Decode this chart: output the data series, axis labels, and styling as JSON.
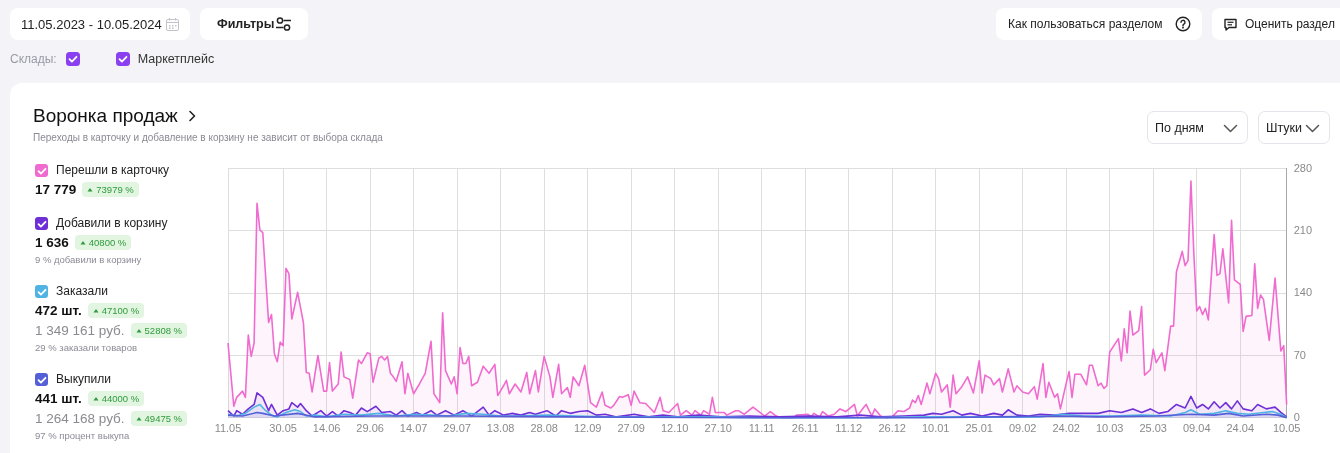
{
  "chart_data": {
    "type": "area",
    "title": "Воронка продаж",
    "subtitle": "Переходы в карточку и добавление в корзину не зависит от выбора склада",
    "annotations": [
      "11.05.2023 - 10.05.2024",
      "Фильтры",
      "Как пользоваться разделом",
      "Оценить раздел",
      "Склады:",
      "Маркетплейс",
      "По дням",
      "Штуки",
      "17 779",
      "73979 %",
      "1 636",
      "40800 %",
      "9 % добавили в корзину",
      "472 шт.",
      "47100 %",
      "1 349 161 руб.",
      "52808 %",
      "29 % заказали товаров",
      "441 шт.",
      "44000 %",
      "1 264 168 руб.",
      "49475 %",
      "97 % процент выкупа"
    ],
    "xlim": [
      "2023-05-11",
      "2024-05-10"
    ],
    "xticks": [
      {
        "value": "2023-05-11",
        "label": "11.05"
      },
      {
        "value": "2023-05-30",
        "label": "30.05"
      },
      {
        "value": "2023-06-14",
        "label": "14.06"
      },
      {
        "value": "2023-06-29",
        "label": "29.06"
      },
      {
        "value": "2023-07-14",
        "label": "14.07"
      },
      {
        "value": "2023-07-29",
        "label": "29.07"
      },
      {
        "value": "2023-08-13",
        "label": "13.08"
      },
      {
        "value": "2023-08-28",
        "label": "28.08"
      },
      {
        "value": "2023-09-12",
        "label": "12.09"
      },
      {
        "value": "2023-09-27",
        "label": "27.09"
      },
      {
        "value": "2023-10-12",
        "label": "12.10"
      },
      {
        "value": "2023-10-27",
        "label": "27.10"
      },
      {
        "value": "2023-11-11",
        "label": "11.11"
      },
      {
        "value": "2023-11-26",
        "label": "26.11"
      },
      {
        "value": "2023-12-11",
        "label": "11.12"
      },
      {
        "value": "2023-12-26",
        "label": "26.12"
      },
      {
        "value": "2024-01-10",
        "label": "10.01"
      },
      {
        "value": "2024-01-25",
        "label": "25.01"
      },
      {
        "value": "2024-02-09",
        "label": "09.02"
      },
      {
        "value": "2024-02-24",
        "label": "24.02"
      },
      {
        "value": "2024-03-10",
        "label": "10.03"
      },
      {
        "value": "2024-03-25",
        "label": "25.03"
      },
      {
        "value": "2024-04-09",
        "label": "09.04"
      },
      {
        "value": "2024-04-24",
        "label": "24.04"
      },
      {
        "value": "2024-05-10",
        "label": "10.05"
      }
    ],
    "ylim": [
      0,
      280
    ],
    "yticks": [
      0,
      70,
      140,
      210,
      280
    ],
    "grid": true,
    "legend": "left",
    "series": [
      {
        "name": "Перешли в карточку",
        "color": "#f06bcf",
        "x": [
          "2023-05-11",
          "2023-05-13",
          "2023-05-14",
          "2023-05-16",
          "2023-05-17",
          "2023-05-18",
          "2023-05-19",
          "2023-05-20",
          "2023-05-21",
          "2023-05-22",
          "2023-05-23",
          "2023-05-25",
          "2023-05-26",
          "2023-05-27",
          "2023-05-28",
          "2023-05-29",
          "2023-05-30",
          "2023-05-31",
          "2023-06-01",
          "2023-06-02",
          "2023-06-04",
          "2023-06-06",
          "2023-06-07",
          "2023-06-08",
          "2023-06-09",
          "2023-06-11",
          "2023-06-13",
          "2023-06-14",
          "2023-06-15",
          "2023-06-16",
          "2023-06-18",
          "2023-06-19",
          "2023-06-20",
          "2023-06-22",
          "2023-06-23",
          "2023-06-25",
          "2023-06-26",
          "2023-06-28",
          "2023-06-29",
          "2023-06-30",
          "2023-07-02",
          "2023-07-03",
          "2023-07-04",
          "2023-07-05",
          "2023-07-06",
          "2023-07-07",
          "2023-07-08",
          "2023-07-10",
          "2023-07-11",
          "2023-07-12",
          "2023-07-14",
          "2023-07-16",
          "2023-07-18",
          "2023-07-20",
          "2023-07-21",
          "2023-07-23",
          "2023-07-24",
          "2023-07-25",
          "2023-07-27",
          "2023-07-28",
          "2023-07-29",
          "2023-07-30",
          "2023-07-31",
          "2023-08-01",
          "2023-08-02",
          "2023-08-03",
          "2023-08-05",
          "2023-08-07",
          "2023-08-09",
          "2023-08-11",
          "2023-08-12",
          "2023-08-14",
          "2023-08-15",
          "2023-08-16",
          "2023-08-18",
          "2023-08-20",
          "2023-08-22",
          "2023-08-23",
          "2023-08-25",
          "2023-08-26",
          "2023-08-28",
          "2023-08-30",
          "2023-08-31",
          "2023-09-02",
          "2023-09-03",
          "2023-09-05",
          "2023-09-06",
          "2023-09-07",
          "2023-09-09",
          "2023-09-11",
          "2023-09-13",
          "2023-09-15",
          "2023-09-17",
          "2023-09-18",
          "2023-09-20",
          "2023-09-21",
          "2023-09-23",
          "2023-09-24",
          "2023-09-26",
          "2023-09-27",
          "2023-09-28",
          "2023-09-30",
          "2023-10-02",
          "2023-10-05",
          "2023-10-07",
          "2023-10-08",
          "2023-10-10",
          "2023-10-13",
          "2023-10-14",
          "2023-10-16",
          "2023-10-18",
          "2023-10-19",
          "2023-10-21",
          "2023-10-22",
          "2023-10-24",
          "2023-10-25",
          "2023-10-26",
          "2023-10-29",
          "2023-10-30",
          "2023-11-02",
          "2023-11-03",
          "2023-11-05",
          "2023-11-08",
          "2023-11-12",
          "2023-11-14",
          "2023-11-16",
          "2023-11-18",
          "2023-11-22",
          "2023-11-23",
          "2023-11-27",
          "2023-11-28",
          "2023-11-29",
          "2023-12-01",
          "2023-12-02",
          "2023-12-04",
          "2023-12-06",
          "2023-12-08",
          "2023-12-10",
          "2023-12-13",
          "2023-12-14",
          "2023-12-16",
          "2023-12-17",
          "2023-12-19",
          "2023-12-20",
          "2023-12-22",
          "2023-12-24",
          "2023-12-26",
          "2023-12-28",
          "2023-12-30",
          "2024-01-01",
          "2024-01-02",
          "2024-01-03",
          "2024-01-04",
          "2024-01-05",
          "2024-01-07",
          "2024-01-08",
          "2024-01-10",
          "2024-01-11",
          "2024-01-12",
          "2024-01-14",
          "2024-01-15",
          "2024-01-16",
          "2024-01-17",
          "2024-01-19",
          "2024-01-21",
          "2024-01-23",
          "2024-01-25",
          "2024-01-26",
          "2024-01-27",
          "2024-01-29",
          "2024-01-30",
          "2024-02-01",
          "2024-02-02",
          "2024-02-04",
          "2024-02-06",
          "2024-02-07",
          "2024-02-09",
          "2024-02-11",
          "2024-02-13",
          "2024-02-14",
          "2024-02-16",
          "2024-02-17",
          "2024-02-18",
          "2024-02-20",
          "2024-02-21",
          "2024-02-22",
          "2024-02-24",
          "2024-02-25",
          "2024-02-26",
          "2024-02-27",
          "2024-02-29",
          "2024-03-02",
          "2024-03-03",
          "2024-03-04",
          "2024-03-06",
          "2024-03-07",
          "2024-03-08",
          "2024-03-09",
          "2024-03-10",
          "2024-03-13",
          "2024-03-14",
          "2024-03-15",
          "2024-03-16",
          "2024-03-17",
          "2024-03-18",
          "2024-03-20",
          "2024-03-21",
          "2024-03-22",
          "2024-03-24",
          "2024-03-25",
          "2024-03-26",
          "2024-03-28",
          "2024-03-29",
          "2024-03-31",
          "2024-04-01",
          "2024-04-02",
          "2024-04-04",
          "2024-04-05",
          "2024-04-06",
          "2024-04-07",
          "2024-04-08",
          "2024-04-09",
          "2024-04-10",
          "2024-04-11",
          "2024-04-12",
          "2024-04-13",
          "2024-04-15",
          "2024-04-16",
          "2024-04-17",
          "2024-04-18",
          "2024-04-20",
          "2024-04-21",
          "2024-04-22",
          "2024-04-24",
          "2024-04-25",
          "2024-04-26",
          "2024-04-28",
          "2024-04-29",
          "2024-04-30",
          "2024-05-01",
          "2024-05-02",
          "2024-05-04",
          "2024-05-06",
          "2024-05-08",
          "2024-05-09",
          "2024-05-10"
        ],
        "values": [
          84,
          13,
          23,
          30,
          23,
          93,
          69,
          84,
          241,
          211,
          208,
          107,
          116,
          72,
          63,
          85,
          81,
          168,
          162,
          111,
          141,
          107,
          51,
          50,
          29,
          70,
          30,
          30,
          62,
          30,
          38,
          74,
          46,
          43,
          22,
          65,
          61,
          73,
          72,
          40,
          67,
          69,
          65,
          69,
          50,
          46,
          41,
          63,
          27,
          50,
          27,
          38,
          50,
          86,
          27,
          17,
          118,
          53,
          38,
          46,
          27,
          79,
          61,
          61,
          69,
          36,
          40,
          58,
          50,
          60,
          25,
          36,
          42,
          27,
          38,
          29,
          51,
          27,
          53,
          29,
          69,
          46,
          23,
          60,
          27,
          34,
          23,
          46,
          36,
          59,
          17,
          12,
          29,
          14,
          11,
          14,
          24,
          23,
          26,
          14,
          30,
          17,
          16,
          6,
          23,
          8,
          6,
          16,
          3,
          8,
          3,
          8,
          3,
          8,
          4,
          23,
          6,
          6,
          3,
          8,
          8,
          4,
          12,
          2,
          7,
          2,
          0,
          0,
          3,
          4,
          1,
          5,
          1,
          7,
          2,
          4,
          10,
          7,
          15,
          2,
          11,
          15,
          2,
          10,
          2,
          0,
          1,
          8,
          7,
          11,
          20,
          17,
          25,
          15,
          39,
          27,
          50,
          44,
          29,
          37,
          12,
          48,
          27,
          35,
          46,
          28,
          64,
          28,
          48,
          44,
          37,
          44,
          29,
          55,
          29,
          36,
          29,
          27,
          35,
          21,
          61,
          23,
          40,
          23,
          27,
          10,
          39,
          52,
          23,
          49,
          49,
          37,
          59,
          59,
          36,
          39,
          33,
          36,
          74,
          89,
          64,
          100,
          73,
          120,
          93,
          98,
          125,
          48,
          54,
          77,
          62,
          73,
          53,
          103,
          103,
          164,
          187,
          171,
          177,
          266,
          185,
          120,
          125,
          116,
          123,
          110,
          206,
          160,
          162,
          190,
          129,
          222,
          155,
          150,
          97,
          114,
          115,
          173,
          123,
          138,
          133,
          87,
          157,
          75,
          81,
          15
        ]
      },
      {
        "name": "Добавили в корзину",
        "color": "#6f2fd6",
        "x": [
          "2023-05-11",
          "2023-05-13",
          "2023-05-14",
          "2023-05-16",
          "2023-05-18",
          "2023-05-20",
          "2023-05-21",
          "2023-05-23",
          "2023-05-25",
          "2023-05-26",
          "2023-05-28",
          "2023-05-30",
          "2023-06-01",
          "2023-06-02",
          "2023-06-04",
          "2023-06-05",
          "2023-06-07",
          "2023-06-09",
          "2023-06-12",
          "2023-06-14",
          "2023-06-16",
          "2023-06-18",
          "2023-06-20",
          "2023-06-22",
          "2023-06-24",
          "2023-06-26",
          "2023-06-28",
          "2023-07-01",
          "2023-07-03",
          "2023-07-06",
          "2023-07-08",
          "2023-07-10",
          "2023-07-12",
          "2023-07-15",
          "2023-07-17",
          "2023-07-20",
          "2023-07-22",
          "2023-07-25",
          "2023-07-28",
          "2023-07-31",
          "2023-08-03",
          "2023-08-07",
          "2023-08-09",
          "2023-08-11",
          "2023-08-14",
          "2023-08-17",
          "2023-08-20",
          "2023-08-23",
          "2023-08-25",
          "2023-08-29",
          "2023-09-01",
          "2023-09-03",
          "2023-09-06",
          "2023-09-09",
          "2023-09-12",
          "2023-09-15",
          "2023-09-18",
          "2023-09-22",
          "2023-09-28",
          "2023-10-03",
          "2023-10-08",
          "2023-10-13",
          "2023-10-20",
          "2023-10-28",
          "2023-11-07",
          "2023-11-17",
          "2023-11-27",
          "2023-12-07",
          "2023-12-15",
          "2023-12-22",
          "2023-12-30",
          "2024-01-06",
          "2024-01-09",
          "2024-01-12",
          "2024-01-16",
          "2024-01-19",
          "2024-01-22",
          "2024-01-26",
          "2024-01-30",
          "2024-02-02",
          "2024-02-04",
          "2024-02-07",
          "2024-02-11",
          "2024-02-15",
          "2024-02-20",
          "2024-02-25",
          "2024-03-01",
          "2024-03-06",
          "2024-03-10",
          "2024-03-14",
          "2024-03-18",
          "2024-03-21",
          "2024-03-24",
          "2024-03-27",
          "2024-03-30",
          "2024-04-02",
          "2024-04-05",
          "2024-04-07",
          "2024-04-09",
          "2024-04-11",
          "2024-04-13",
          "2024-04-15",
          "2024-04-17",
          "2024-04-19",
          "2024-04-21",
          "2024-04-23",
          "2024-04-25",
          "2024-04-28",
          "2024-04-30",
          "2024-05-03",
          "2024-05-06",
          "2024-05-08",
          "2024-05-10"
        ],
        "values": [
          8,
          2,
          8,
          4,
          10,
          15,
          28,
          23,
          8,
          15,
          3,
          8,
          10,
          17,
          12,
          16,
          8,
          2,
          8,
          2,
          7,
          2,
          8,
          6,
          3,
          11,
          7,
          13,
          6,
          7,
          3,
          8,
          2,
          6,
          3,
          8,
          3,
          8,
          3,
          8,
          2,
          12,
          3,
          8,
          3,
          5,
          3,
          6,
          4,
          8,
          2,
          8,
          5,
          7,
          8,
          3,
          4,
          1,
          4,
          1,
          3,
          1,
          3,
          1,
          2,
          1,
          2,
          1,
          3,
          1,
          2,
          3,
          5,
          4,
          8,
          3,
          5,
          2,
          5,
          3,
          9,
          3,
          2,
          4,
          3,
          5,
          5,
          5,
          8,
          6,
          10,
          6,
          10,
          5,
          7,
          15,
          11,
          24,
          11,
          15,
          10,
          18,
          11,
          17,
          10,
          19,
          10,
          8,
          15,
          10,
          12,
          6,
          1
        ]
      },
      {
        "name": "Заказали",
        "color": "#4fb4e3",
        "x": [
          "2023-05-11",
          "2023-05-14",
          "2023-05-17",
          "2023-05-20",
          "2023-05-22",
          "2023-05-24",
          "2023-05-26",
          "2023-05-28",
          "2023-05-31",
          "2023-06-03",
          "2023-06-05",
          "2023-06-07",
          "2023-06-10",
          "2023-06-14",
          "2023-06-20",
          "2023-06-26",
          "2023-07-02",
          "2023-07-08",
          "2023-07-14",
          "2023-07-20",
          "2023-07-26",
          "2023-08-01",
          "2023-08-07",
          "2023-08-13",
          "2023-08-19",
          "2023-08-29",
          "2023-09-08",
          "2023-09-18",
          "2023-10-03",
          "2023-10-23",
          "2023-11-12",
          "2023-12-17",
          "2024-01-06",
          "2024-01-26",
          "2024-02-15",
          "2024-02-23",
          "2024-03-01",
          "2024-03-11",
          "2024-03-21",
          "2024-03-31",
          "2024-04-05",
          "2024-04-07",
          "2024-04-10",
          "2024-04-15",
          "2024-04-19",
          "2024-04-23",
          "2024-04-27",
          "2024-05-02",
          "2024-05-05",
          "2024-05-08",
          "2024-05-10"
        ],
        "values": [
          4,
          2,
          5,
          12,
          15,
          8,
          3,
          1,
          6,
          9,
          7,
          2,
          3,
          1,
          4,
          3,
          5,
          2,
          4,
          3,
          2,
          5,
          4,
          2,
          2,
          3,
          2,
          1,
          1,
          1,
          0,
          0,
          1,
          1,
          1,
          4,
          2,
          2,
          3,
          2,
          6,
          9,
          4,
          5,
          8,
          5,
          4,
          6,
          7,
          4,
          0
        ]
      },
      {
        "name": "Выкупили",
        "color": "#5560d8",
        "x": [
          "2023-05-11",
          "2023-05-16",
          "2023-05-21",
          "2023-05-23",
          "2023-05-27",
          "2023-06-04",
          "2023-06-10",
          "2023-06-30",
          "2023-07-30",
          "2023-09-08",
          "2023-11-07",
          "2024-01-06",
          "2024-02-23",
          "2024-03-06",
          "2024-03-26",
          "2024-04-07",
          "2024-04-15",
          "2024-04-20",
          "2024-04-25",
          "2024-05-03",
          "2024-05-07",
          "2024-05-10"
        ],
        "values": [
          3,
          2,
          6,
          5,
          2,
          5,
          1,
          2,
          2,
          1,
          0,
          0,
          2,
          1,
          2,
          4,
          3,
          5,
          2,
          4,
          3,
          0
        ]
      }
    ]
  }
}
